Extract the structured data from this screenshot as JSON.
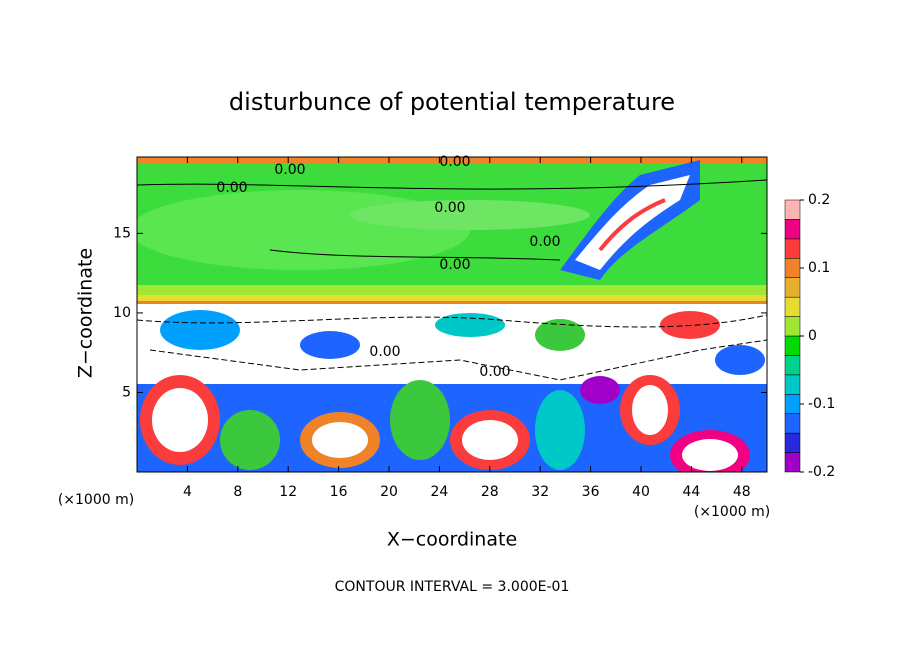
{
  "chart_data": {
    "type": "contour",
    "title": "disturbunce of potential temperature",
    "x_label": "X−coordinate",
    "y_label": "Z−coordinate",
    "x_unit_left": "(×1000 m)",
    "x_unit_right": "(×1000 m)",
    "xlim": [
      0,
      50
    ],
    "xticks": [
      4,
      8,
      12,
      16,
      20,
      24,
      28,
      32,
      36,
      40,
      44,
      48
    ],
    "ylim": [
      0,
      19.8
    ],
    "yticks": [
      5,
      10,
      15
    ],
    "contour_labels": [
      "0.00",
      "0.00",
      "0.00",
      "0.00",
      "0.00",
      "0.00",
      "0.00",
      "0.00"
    ],
    "footnote": "CONTOUR INTERVAL = 3.000E-01",
    "colorbar": {
      "lim": [
        -0.2,
        0.2
      ],
      "ticks": [
        -0.2,
        -0.1,
        0,
        0.1,
        0.2
      ],
      "colors": [
        "#a000c8",
        "#2828dc",
        "#1e64ff",
        "#00a0ff",
        "#00c8c8",
        "#00d28c",
        "#00dc00",
        "#a0e632",
        "#e6dc32",
        "#e6af2d",
        "#f08228",
        "#fa3c3c",
        "#f00082",
        "#ffb4b4"
      ]
    }
  }
}
